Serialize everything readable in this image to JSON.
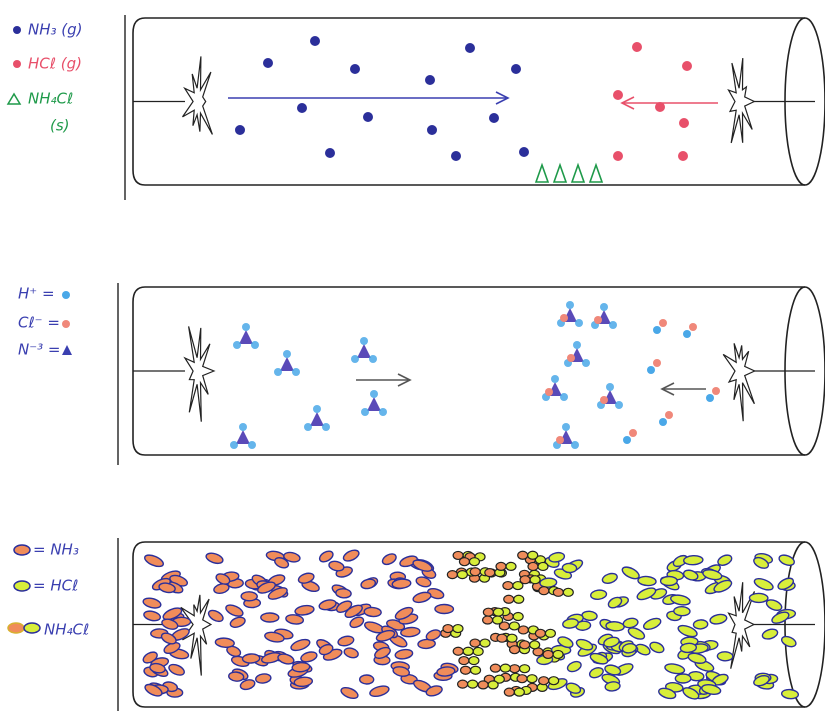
{
  "panel1": {
    "legend": [
      "NH₃ (g)",
      "HCℓ (g)",
      "NH₄Cℓ",
      "(s)"
    ]
  },
  "panel2": {
    "legend": [
      "H⁺ =",
      "Cℓ⁻ =",
      "N⁻³ ="
    ]
  },
  "panel3": {
    "legend": [
      "= NH₃",
      "= HCℓ",
      "NH₄Cℓ"
    ]
  }
}
